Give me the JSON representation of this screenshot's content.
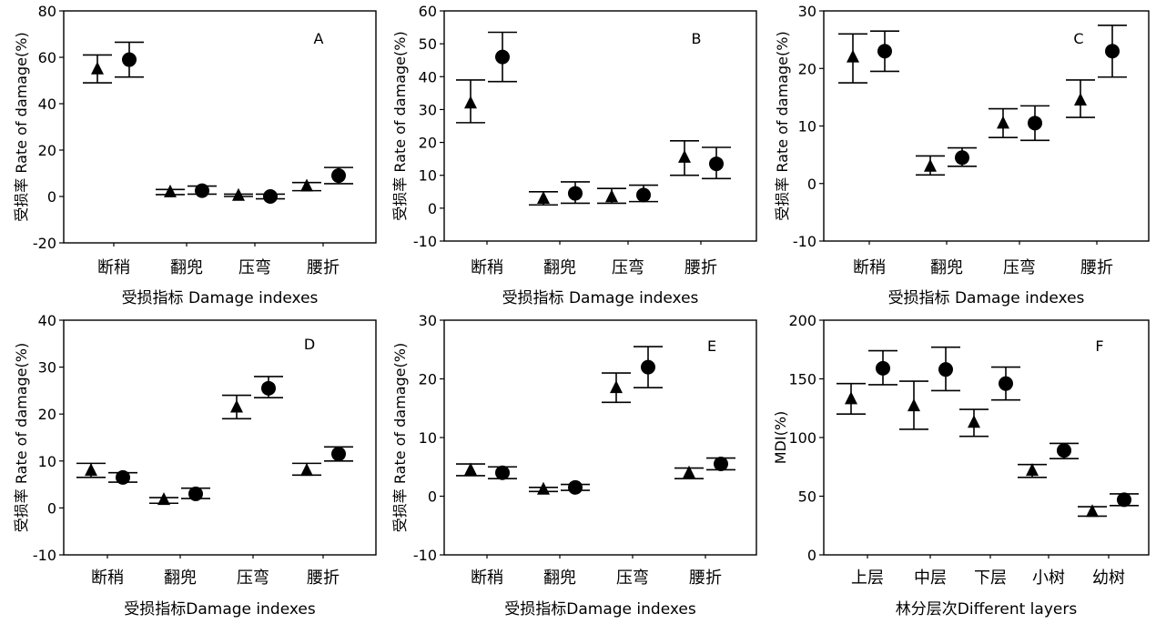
{
  "chart_data": [
    {
      "panel": "A",
      "type": "scatter",
      "categories": [
        "断稍",
        "翻兜",
        "压弯",
        "腰折"
      ],
      "xlabel": "受损指标 Damage indexes",
      "ylabel": "受损率 Rate of damage(%)",
      "ylim": [
        -20,
        80
      ],
      "yticks": [
        -20,
        0,
        20,
        40,
        60,
        80
      ],
      "series": [
        {
          "marker": "triangle",
          "values": [
            55,
            2,
            0.5,
            4.5
          ],
          "low": [
            49,
            0.8,
            0,
            2.5
          ],
          "high": [
            61,
            3,
            1,
            6
          ]
        },
        {
          "marker": "circle",
          "values": [
            59,
            2.5,
            0,
            9
          ],
          "low": [
            51.5,
            1,
            -1,
            5.5
          ],
          "high": [
            66.5,
            4.5,
            1,
            12.5
          ]
        }
      ]
    },
    {
      "panel": "B",
      "type": "scatter",
      "categories": [
        "断稍",
        "翻兜",
        "压弯",
        "腰折"
      ],
      "xlabel": "受损指标 Damage indexes",
      "ylabel": "受损率 Rate of damage(%)",
      "ylim": [
        -10,
        60
      ],
      "yticks": [
        -10,
        0,
        10,
        20,
        30,
        40,
        50,
        60
      ],
      "series": [
        {
          "marker": "triangle",
          "values": [
            32,
            3,
            3.5,
            15.5
          ],
          "low": [
            26,
            1,
            1.5,
            10
          ],
          "high": [
            39,
            5,
            6,
            20.5
          ]
        },
        {
          "marker": "circle",
          "values": [
            46,
            4.5,
            4,
            13.5
          ],
          "low": [
            38.5,
            1.5,
            2,
            9
          ],
          "high": [
            53.5,
            8,
            7,
            18.5
          ]
        }
      ]
    },
    {
      "panel": "C",
      "type": "scatter",
      "categories": [
        "断稍",
        "翻兜",
        "压弯",
        "腰折"
      ],
      "xlabel": "受损指标 Damage indexes",
      "ylabel": "受损率 Rate of damage(%)",
      "ylim": [
        -10,
        30
      ],
      "yticks": [
        -10,
        0,
        10,
        20,
        30
      ],
      "series": [
        {
          "marker": "triangle",
          "values": [
            22,
            3,
            10.5,
            14.5
          ],
          "low": [
            17.5,
            1.5,
            8,
            11.5
          ],
          "high": [
            26,
            4.8,
            13,
            18
          ]
        },
        {
          "marker": "circle",
          "values": [
            23,
            4.5,
            10.5,
            23
          ],
          "low": [
            19.5,
            3,
            7.5,
            18.5
          ],
          "high": [
            26.5,
            6.2,
            13.5,
            27.5
          ]
        }
      ]
    },
    {
      "panel": "D",
      "type": "scatter",
      "categories": [
        "断稍",
        "翻兜",
        "压弯",
        "腰折"
      ],
      "xlabel": "受损指标Damage indexes",
      "ylabel": "受损率 Rate of damage(%)",
      "ylim": [
        -10,
        40
      ],
      "yticks": [
        -10,
        0,
        10,
        20,
        30,
        40
      ],
      "series": [
        {
          "marker": "triangle",
          "values": [
            8,
            1.8,
            21.5,
            8
          ],
          "low": [
            6.5,
            1,
            19,
            7
          ],
          "high": [
            9.5,
            2.2,
            24,
            9.5
          ]
        },
        {
          "marker": "circle",
          "values": [
            6.5,
            3,
            25.5,
            11.5
          ],
          "low": [
            5.5,
            2,
            23.5,
            10
          ],
          "high": [
            7.5,
            4.2,
            28,
            13
          ]
        }
      ]
    },
    {
      "panel": "E",
      "type": "scatter",
      "categories": [
        "断稍",
        "翻兜",
        "压弯",
        "腰折"
      ],
      "xlabel": "受损指标Damage indexes",
      "ylabel": "受损率 Rate of damage(%)",
      "ylim": [
        -10,
        30
      ],
      "yticks": [
        -10,
        0,
        10,
        20,
        30
      ],
      "series": [
        {
          "marker": "triangle",
          "values": [
            4.5,
            1.2,
            18.5,
            4
          ],
          "low": [
            3.5,
            0.8,
            16,
            3
          ],
          "high": [
            5.5,
            1.5,
            21,
            4.8
          ]
        },
        {
          "marker": "circle",
          "values": [
            4,
            1.5,
            22,
            5.5
          ],
          "low": [
            3,
            1,
            18.5,
            4.5
          ],
          "high": [
            5,
            2,
            25.5,
            6.5
          ]
        }
      ]
    },
    {
      "panel": "F",
      "type": "scatter",
      "categories": [
        "上层",
        "中层",
        "下层",
        "小树",
        "幼树"
      ],
      "xlabel": "林分层次Different layers",
      "ylabel": "MDI(%)",
      "ylim": [
        0,
        200
      ],
      "yticks": [
        0,
        50,
        100,
        150,
        200
      ],
      "series": [
        {
          "marker": "triangle",
          "values": [
            133,
            127,
            113,
            72,
            37
          ],
          "low": [
            120,
            107,
            101,
            66,
            33
          ],
          "high": [
            146,
            148,
            124,
            77,
            41
          ]
        },
        {
          "marker": "circle",
          "values": [
            159,
            158,
            146,
            89,
            47
          ],
          "low": [
            145,
            140,
            132,
            82,
            42
          ],
          "high": [
            174,
            177,
            160,
            95,
            52
          ]
        }
      ]
    }
  ]
}
